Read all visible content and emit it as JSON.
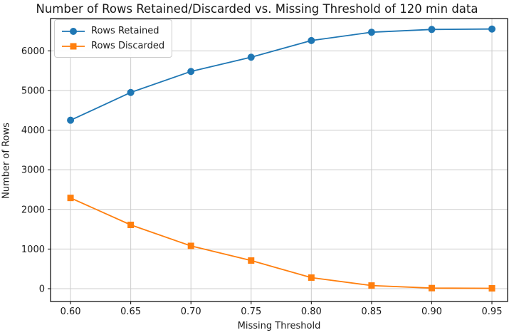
{
  "chart_data": {
    "type": "line",
    "title": "Number of Rows Retained/Discarded vs. Missing Threshold of 120 min data",
    "xlabel": "Missing Threshold",
    "ylabel": "Number of Rows",
    "x": [
      0.6,
      0.65,
      0.7,
      0.75,
      0.8,
      0.85,
      0.9,
      0.95
    ],
    "x_tick_labels": [
      "0.60",
      "0.65",
      "0.70",
      "0.75",
      "0.80",
      "0.85",
      "0.90",
      "0.95"
    ],
    "y_ticks": [
      0,
      1000,
      2000,
      3000,
      4000,
      5000,
      6000
    ],
    "y_tick_labels": [
      "0",
      "1000",
      "2000",
      "3000",
      "4000",
      "5000",
      "6000"
    ],
    "xlim": [
      0.5834,
      0.963
    ],
    "ylim": [
      -323,
      6815
    ],
    "grid": true,
    "legend_position": "upper left",
    "series": [
      {
        "name": "Rows Retained",
        "color": "#1f77b4",
        "marker": "circle",
        "values": [
          4250,
          4950,
          5480,
          5840,
          6260,
          6470,
          6540,
          6550
        ]
      },
      {
        "name": "Rows Discarded",
        "color": "#ff7f0e",
        "marker": "square",
        "values": [
          2290,
          1610,
          1080,
          710,
          280,
          80,
          15,
          10
        ]
      }
    ]
  },
  "colors": {
    "grid": "#cccccc",
    "spine": "#000000",
    "tick_text": "#1a1a1a"
  }
}
